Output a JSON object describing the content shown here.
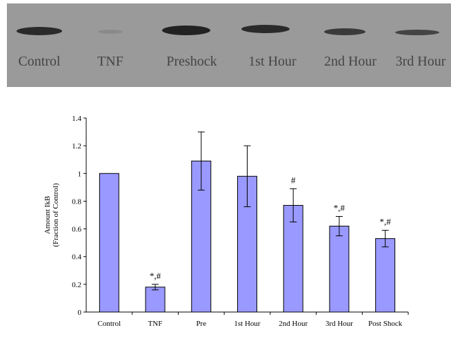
{
  "blot": {
    "labels": [
      "Control",
      "TNF",
      "Preshock",
      "1st Hour",
      "2nd Hour",
      "3rd Hour"
    ]
  },
  "chart_data": {
    "type": "bar",
    "y_label": [
      "Amount IkB",
      "(Fraction of Control)"
    ],
    "categories": [
      "Control",
      "TNF",
      "Pre",
      "1st Hour",
      "2nd Hour",
      "3rd Hour",
      "Post Shock"
    ],
    "values": [
      1.0,
      0.18,
      1.09,
      0.98,
      0.77,
      0.62,
      0.53
    ],
    "errors": [
      null,
      0.02,
      0.21,
      0.22,
      0.12,
      0.07,
      0.06
    ],
    "annotations": [
      null,
      "*,#",
      null,
      null,
      "#",
      "*,#",
      "*,#"
    ],
    "color": "#9999ff",
    "ylim": [
      0,
      1.4
    ],
    "yticks": [
      0,
      0.2,
      0.4,
      0.6,
      0.8,
      1,
      1.2,
      1.4
    ]
  }
}
